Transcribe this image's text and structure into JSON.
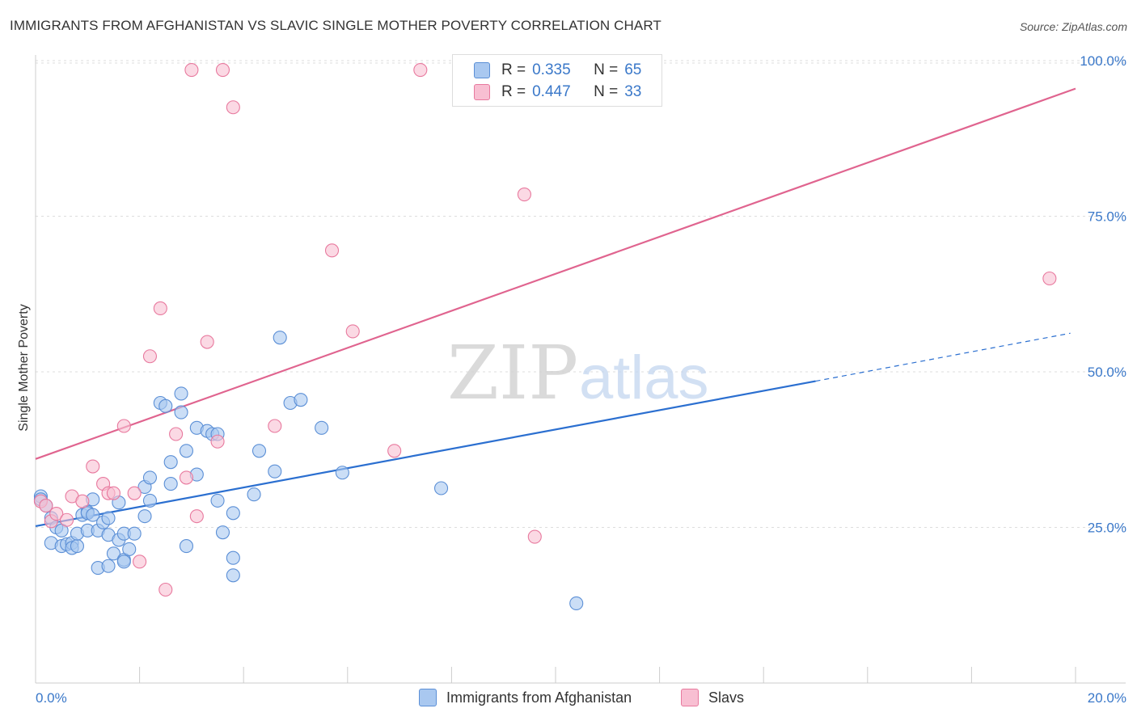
{
  "header": {
    "title": "IMMIGRANTS FROM AFGHANISTAN VS SLAVIC SINGLE MOTHER POVERTY CORRELATION CHART",
    "source": "Source: ZipAtlas.com"
  },
  "watermark": {
    "zip": "ZIP",
    "atlas": "atlas"
  },
  "legend_top": [
    {
      "r_label": "R =",
      "r_value": "0.335",
      "n_label": "N =",
      "n_value": "65",
      "color": "#a9c8f0",
      "border": "#5b8fd6"
    },
    {
      "r_label": "R =",
      "r_value": "0.447",
      "n_label": "N =",
      "n_value": "33",
      "color": "#f8bfd2",
      "border": "#e8799e"
    }
  ],
  "chart_data": {
    "type": "scatter",
    "title": "IMMIGRANTS FROM AFGHANISTAN VS SLAVIC SINGLE MOTHER POVERTY CORRELATION CHART",
    "xlabel": "",
    "ylabel": "Single Mother Poverty",
    "xlim": [
      0,
      20
    ],
    "ylim": [
      0,
      100
    ],
    "x_tick_labels": [
      "0.0%",
      "20.0%"
    ],
    "y_ticks": [
      25,
      50,
      75,
      100
    ],
    "y_tick_labels": [
      "25.0%",
      "50.0%",
      "75.0%",
      "100.0%"
    ],
    "grid": true,
    "legend_position": "bottom",
    "series": [
      {
        "name": "Immigrants from Afghanistan",
        "color": "#a9c8f0",
        "edge": "#5b8fd6",
        "line_color": "#2b6fd0",
        "trend": {
          "x0": 0,
          "y0": 25.2,
          "x1": 15.0,
          "y1": 48.5,
          "dash_x1": 19.9,
          "dash_y1": 56.2
        },
        "points": [
          [
            0.1,
            30.0
          ],
          [
            0.1,
            29.5
          ],
          [
            0.2,
            28.5
          ],
          [
            0.3,
            26.5
          ],
          [
            0.3,
            22.5
          ],
          [
            0.4,
            25.0
          ],
          [
            0.5,
            24.5
          ],
          [
            0.5,
            22.0
          ],
          [
            0.6,
            22.3
          ],
          [
            0.7,
            22.5
          ],
          [
            0.7,
            21.7
          ],
          [
            0.8,
            22.0
          ],
          [
            0.8,
            24.0
          ],
          [
            0.9,
            27.0
          ],
          [
            1.0,
            27.5
          ],
          [
            1.0,
            24.5
          ],
          [
            1.0,
            27.3
          ],
          [
            1.1,
            29.5
          ],
          [
            1.1,
            27.0
          ],
          [
            1.2,
            24.5
          ],
          [
            1.2,
            18.5
          ],
          [
            1.3,
            25.8
          ],
          [
            1.4,
            26.5
          ],
          [
            1.4,
            23.8
          ],
          [
            1.4,
            18.8
          ],
          [
            1.5,
            20.8
          ],
          [
            1.6,
            23.0
          ],
          [
            1.6,
            29.0
          ],
          [
            1.7,
            19.8
          ],
          [
            1.7,
            19.5
          ],
          [
            1.7,
            24.0
          ],
          [
            1.8,
            21.5
          ],
          [
            1.9,
            24.0
          ],
          [
            2.1,
            26.8
          ],
          [
            2.1,
            31.5
          ],
          [
            2.2,
            33.0
          ],
          [
            2.2,
            29.3
          ],
          [
            2.4,
            45.0
          ],
          [
            2.5,
            44.5
          ],
          [
            2.6,
            32.0
          ],
          [
            2.6,
            35.5
          ],
          [
            2.8,
            43.5
          ],
          [
            2.8,
            46.5
          ],
          [
            2.9,
            37.3
          ],
          [
            2.9,
            22.0
          ],
          [
            3.1,
            33.5
          ],
          [
            3.1,
            41.0
          ],
          [
            3.3,
            40.5
          ],
          [
            3.4,
            40.0
          ],
          [
            3.5,
            40.0
          ],
          [
            3.5,
            29.3
          ],
          [
            3.6,
            24.2
          ],
          [
            3.8,
            27.3
          ],
          [
            3.8,
            17.3
          ],
          [
            3.8,
            20.1
          ],
          [
            4.2,
            30.3
          ],
          [
            4.3,
            37.3
          ],
          [
            4.6,
            34.0
          ],
          [
            4.7,
            55.5
          ],
          [
            4.9,
            45.0
          ],
          [
            5.1,
            45.5
          ],
          [
            5.5,
            41.0
          ],
          [
            5.9,
            33.8
          ],
          [
            7.8,
            31.3
          ],
          [
            10.4,
            12.8
          ]
        ]
      },
      {
        "name": "Slavs",
        "color": "#f8bfd2",
        "edge": "#e8799e",
        "line_color": "#e0648f",
        "trend": {
          "x0": 0,
          "y0": 36.0,
          "x1": 20.0,
          "y1": 95.5
        },
        "points": [
          [
            0.1,
            29.2
          ],
          [
            0.2,
            28.5
          ],
          [
            0.3,
            26.0
          ],
          [
            0.4,
            27.2
          ],
          [
            0.6,
            26.2
          ],
          [
            0.7,
            30.0
          ],
          [
            0.9,
            29.2
          ],
          [
            1.1,
            34.8
          ],
          [
            1.3,
            32.0
          ],
          [
            1.4,
            30.5
          ],
          [
            1.5,
            30.5
          ],
          [
            1.7,
            41.3
          ],
          [
            1.9,
            30.5
          ],
          [
            2.0,
            19.5
          ],
          [
            2.2,
            52.5
          ],
          [
            2.4,
            60.2
          ],
          [
            2.5,
            15.0
          ],
          [
            2.7,
            40.0
          ],
          [
            2.9,
            33.0
          ],
          [
            3.0,
            98.5
          ],
          [
            3.1,
            26.8
          ],
          [
            3.3,
            54.8
          ],
          [
            3.5,
            38.8
          ],
          [
            3.6,
            98.5
          ],
          [
            3.8,
            92.5
          ],
          [
            4.6,
            41.3
          ],
          [
            5.7,
            69.5
          ],
          [
            6.1,
            56.5
          ],
          [
            6.9,
            37.3
          ],
          [
            7.4,
            98.5
          ],
          [
            9.4,
            78.5
          ],
          [
            9.6,
            23.5
          ],
          [
            19.5,
            65.0
          ]
        ]
      }
    ]
  },
  "bottom_legend": [
    {
      "label": "Immigrants from Afghanistan",
      "color": "#a9c8f0",
      "border": "#5b8fd6"
    },
    {
      "label": "Slavs",
      "color": "#f8bfd2",
      "border": "#e8799e"
    }
  ]
}
